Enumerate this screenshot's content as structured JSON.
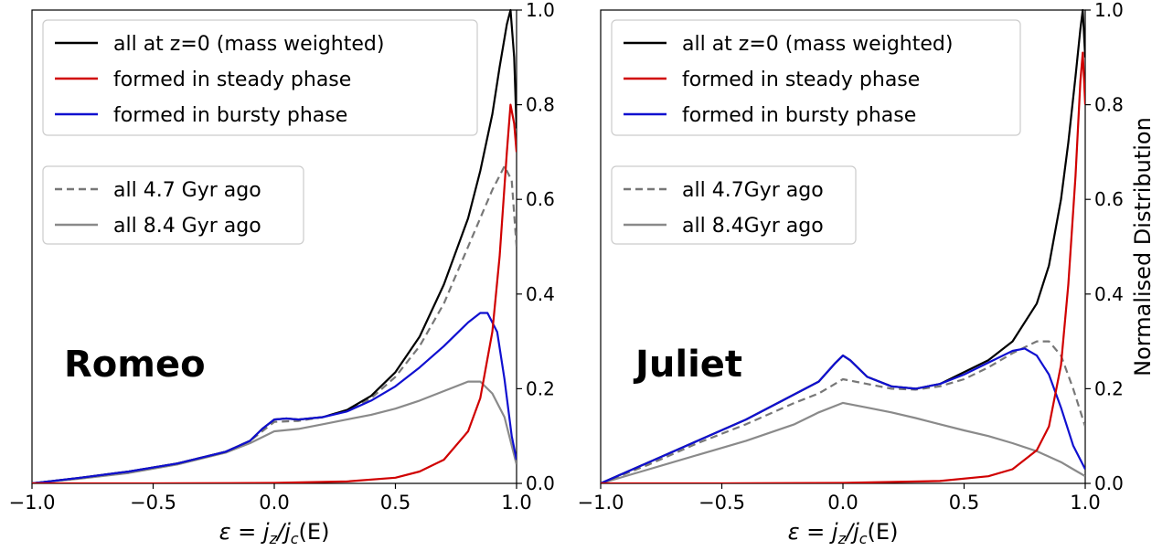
{
  "chart_data": [
    {
      "type": "line",
      "panel_label": "Romeo",
      "xlabel": "ε = j_z/j_c(E)",
      "ylabel": "",
      "xlim": [
        -1.0,
        1.0
      ],
      "ylim": [
        0.0,
        1.0
      ],
      "x_ticks": [
        "−1.0",
        "−0.5",
        "0.0",
        "0.5",
        "1.0"
      ],
      "y_ticks": [
        "0.0",
        "0.2",
        "0.4",
        "0.6",
        "0.8",
        "1.0"
      ],
      "y_axis_side": "right",
      "grid": false,
      "legend_top": [
        "all at z=0 (mass weighted)",
        "formed in steady phase",
        "formed in bursty phase"
      ],
      "legend_bottom": [
        "all 4.7 Gyr ago",
        "all 8.4 Gyr ago"
      ],
      "series": [
        {
          "name": "all at z=0 (mass weighted)",
          "color": "#000000",
          "style": "solid",
          "points": [
            [
              -1.0,
              0.0
            ],
            [
              -0.8,
              0.012
            ],
            [
              -0.6,
              0.025
            ],
            [
              -0.4,
              0.042
            ],
            [
              -0.2,
              0.067
            ],
            [
              -0.1,
              0.09
            ],
            [
              -0.05,
              0.115
            ],
            [
              0.0,
              0.135
            ],
            [
              0.05,
              0.137
            ],
            [
              0.1,
              0.135
            ],
            [
              0.2,
              0.14
            ],
            [
              0.3,
              0.155
            ],
            [
              0.4,
              0.185
            ],
            [
              0.5,
              0.235
            ],
            [
              0.6,
              0.31
            ],
            [
              0.7,
              0.42
            ],
            [
              0.8,
              0.56
            ],
            [
              0.85,
              0.66
            ],
            [
              0.9,
              0.78
            ],
            [
              0.93,
              0.88
            ],
            [
              0.96,
              0.97
            ],
            [
              0.975,
              1.0
            ],
            [
              0.99,
              0.9
            ],
            [
              1.0,
              0.75
            ]
          ]
        },
        {
          "name": "formed in steady phase",
          "color": "#d00000",
          "style": "solid",
          "points": [
            [
              -1.0,
              0.0
            ],
            [
              -0.5,
              0.0
            ],
            [
              0.0,
              0.001
            ],
            [
              0.3,
              0.004
            ],
            [
              0.5,
              0.012
            ],
            [
              0.6,
              0.025
            ],
            [
              0.7,
              0.05
            ],
            [
              0.8,
              0.11
            ],
            [
              0.85,
              0.18
            ],
            [
              0.9,
              0.32
            ],
            [
              0.93,
              0.48
            ],
            [
              0.96,
              0.7
            ],
            [
              0.975,
              0.8
            ],
            [
              0.99,
              0.76
            ],
            [
              1.0,
              0.7
            ]
          ]
        },
        {
          "name": "formed in bursty phase",
          "color": "#1010d0",
          "style": "solid",
          "points": [
            [
              -1.0,
              0.0
            ],
            [
              -0.8,
              0.012
            ],
            [
              -0.6,
              0.025
            ],
            [
              -0.4,
              0.042
            ],
            [
              -0.2,
              0.067
            ],
            [
              -0.1,
              0.09
            ],
            [
              -0.05,
              0.115
            ],
            [
              0.0,
              0.135
            ],
            [
              0.05,
              0.137
            ],
            [
              0.1,
              0.135
            ],
            [
              0.2,
              0.14
            ],
            [
              0.3,
              0.152
            ],
            [
              0.4,
              0.175
            ],
            [
              0.5,
              0.205
            ],
            [
              0.6,
              0.245
            ],
            [
              0.7,
              0.29
            ],
            [
              0.8,
              0.34
            ],
            [
              0.85,
              0.36
            ],
            [
              0.88,
              0.36
            ],
            [
              0.92,
              0.32
            ],
            [
              0.95,
              0.22
            ],
            [
              0.98,
              0.1
            ],
            [
              1.0,
              0.05
            ]
          ]
        },
        {
          "name": "all 4.7 Gyr ago",
          "color": "#777777",
          "style": "dashed",
          "points": [
            [
              -1.0,
              0.0
            ],
            [
              -0.8,
              0.012
            ],
            [
              -0.6,
              0.025
            ],
            [
              -0.4,
              0.042
            ],
            [
              -0.2,
              0.067
            ],
            [
              -0.1,
              0.09
            ],
            [
              0.0,
              0.13
            ],
            [
              0.1,
              0.132
            ],
            [
              0.2,
              0.14
            ],
            [
              0.3,
              0.155
            ],
            [
              0.4,
              0.18
            ],
            [
              0.5,
              0.225
            ],
            [
              0.6,
              0.29
            ],
            [
              0.7,
              0.38
            ],
            [
              0.8,
              0.5
            ],
            [
              0.9,
              0.62
            ],
            [
              0.95,
              0.67
            ],
            [
              0.98,
              0.64
            ],
            [
              1.0,
              0.5
            ]
          ]
        },
        {
          "name": "all 8.4 Gyr ago",
          "color": "#8a8a8a",
          "style": "solid",
          "points": [
            [
              -1.0,
              0.0
            ],
            [
              -0.8,
              0.01
            ],
            [
              -0.6,
              0.022
            ],
            [
              -0.4,
              0.04
            ],
            [
              -0.2,
              0.065
            ],
            [
              -0.1,
              0.085
            ],
            [
              0.0,
              0.11
            ],
            [
              0.1,
              0.115
            ],
            [
              0.2,
              0.125
            ],
            [
              0.3,
              0.135
            ],
            [
              0.4,
              0.145
            ],
            [
              0.5,
              0.158
            ],
            [
              0.6,
              0.175
            ],
            [
              0.7,
              0.195
            ],
            [
              0.8,
              0.215
            ],
            [
              0.85,
              0.215
            ],
            [
              0.9,
              0.19
            ],
            [
              0.95,
              0.14
            ],
            [
              0.98,
              0.08
            ],
            [
              1.0,
              0.04
            ]
          ]
        }
      ]
    },
    {
      "type": "line",
      "panel_label": "Juliet",
      "xlabel": "ε = j_z/j_c(E)",
      "ylabel": "Normalised Distribution",
      "xlim": [
        -1.0,
        1.0
      ],
      "ylim": [
        0.0,
        1.0
      ],
      "x_ticks": [
        "−1.0",
        "−0.5",
        "0.0",
        "0.5",
        "1.0"
      ],
      "y_ticks": [
        "0.0",
        "0.2",
        "0.4",
        "0.6",
        "0.8",
        "1.0"
      ],
      "y_axis_side": "right",
      "grid": false,
      "legend_top": [
        "all at z=0 (mass weighted)",
        "formed in steady phase",
        "formed in bursty phase"
      ],
      "legend_bottom": [
        "all 4.7Gyr ago",
        "all 8.4Gyr ago"
      ],
      "series": [
        {
          "name": "all at z=0 (mass weighted)",
          "color": "#000000",
          "style": "solid",
          "points": [
            [
              -1.0,
              0.0
            ],
            [
              -0.8,
              0.045
            ],
            [
              -0.6,
              0.09
            ],
            [
              -0.4,
              0.135
            ],
            [
              -0.25,
              0.175
            ],
            [
              -0.1,
              0.215
            ],
            [
              -0.03,
              0.255
            ],
            [
              0.0,
              0.27
            ],
            [
              0.03,
              0.26
            ],
            [
              0.1,
              0.225
            ],
            [
              0.2,
              0.205
            ],
            [
              0.3,
              0.2
            ],
            [
              0.4,
              0.21
            ],
            [
              0.5,
              0.235
            ],
            [
              0.6,
              0.26
            ],
            [
              0.7,
              0.3
            ],
            [
              0.8,
              0.38
            ],
            [
              0.85,
              0.46
            ],
            [
              0.9,
              0.6
            ],
            [
              0.93,
              0.72
            ],
            [
              0.96,
              0.86
            ],
            [
              0.98,
              0.96
            ],
            [
              0.99,
              1.0
            ],
            [
              1.0,
              0.9
            ]
          ]
        },
        {
          "name": "formed in steady phase",
          "color": "#d00000",
          "style": "solid",
          "points": [
            [
              -1.0,
              0.0
            ],
            [
              -0.5,
              0.0
            ],
            [
              0.0,
              0.001
            ],
            [
              0.4,
              0.005
            ],
            [
              0.6,
              0.015
            ],
            [
              0.7,
              0.03
            ],
            [
              0.8,
              0.07
            ],
            [
              0.85,
              0.12
            ],
            [
              0.9,
              0.25
            ],
            [
              0.93,
              0.42
            ],
            [
              0.96,
              0.65
            ],
            [
              0.98,
              0.85
            ],
            [
              0.99,
              0.91
            ],
            [
              1.0,
              0.8
            ]
          ]
        },
        {
          "name": "formed in bursty phase",
          "color": "#1010d0",
          "style": "solid",
          "points": [
            [
              -1.0,
              0.0
            ],
            [
              -0.8,
              0.045
            ],
            [
              -0.6,
              0.09
            ],
            [
              -0.4,
              0.135
            ],
            [
              -0.25,
              0.175
            ],
            [
              -0.1,
              0.215
            ],
            [
              -0.03,
              0.255
            ],
            [
              0.0,
              0.27
            ],
            [
              0.03,
              0.26
            ],
            [
              0.1,
              0.225
            ],
            [
              0.2,
              0.205
            ],
            [
              0.3,
              0.2
            ],
            [
              0.4,
              0.21
            ],
            [
              0.5,
              0.23
            ],
            [
              0.6,
              0.255
            ],
            [
              0.7,
              0.28
            ],
            [
              0.75,
              0.285
            ],
            [
              0.8,
              0.27
            ],
            [
              0.85,
              0.23
            ],
            [
              0.9,
              0.16
            ],
            [
              0.95,
              0.08
            ],
            [
              1.0,
              0.03
            ]
          ]
        },
        {
          "name": "all 4.7Gyr ago",
          "color": "#777777",
          "style": "dashed",
          "points": [
            [
              -1.0,
              0.0
            ],
            [
              -0.8,
              0.04
            ],
            [
              -0.6,
              0.085
            ],
            [
              -0.4,
              0.125
            ],
            [
              -0.2,
              0.17
            ],
            [
              -0.1,
              0.19
            ],
            [
              0.0,
              0.22
            ],
            [
              0.1,
              0.21
            ],
            [
              0.2,
              0.2
            ],
            [
              0.3,
              0.198
            ],
            [
              0.4,
              0.205
            ],
            [
              0.5,
              0.22
            ],
            [
              0.6,
              0.245
            ],
            [
              0.7,
              0.275
            ],
            [
              0.8,
              0.3
            ],
            [
              0.85,
              0.3
            ],
            [
              0.9,
              0.27
            ],
            [
              0.95,
              0.2
            ],
            [
              1.0,
              0.12
            ]
          ]
        },
        {
          "name": "all 8.4Gyr ago",
          "color": "#8a8a8a",
          "style": "solid",
          "points": [
            [
              -1.0,
              0.0
            ],
            [
              -0.8,
              0.03
            ],
            [
              -0.6,
              0.06
            ],
            [
              -0.4,
              0.09
            ],
            [
              -0.2,
              0.125
            ],
            [
              -0.1,
              0.15
            ],
            [
              0.0,
              0.17
            ],
            [
              0.1,
              0.16
            ],
            [
              0.2,
              0.15
            ],
            [
              0.3,
              0.138
            ],
            [
              0.4,
              0.125
            ],
            [
              0.5,
              0.112
            ],
            [
              0.6,
              0.1
            ],
            [
              0.7,
              0.085
            ],
            [
              0.8,
              0.068
            ],
            [
              0.9,
              0.045
            ],
            [
              0.95,
              0.03
            ],
            [
              1.0,
              0.015
            ]
          ]
        }
      ]
    }
  ]
}
